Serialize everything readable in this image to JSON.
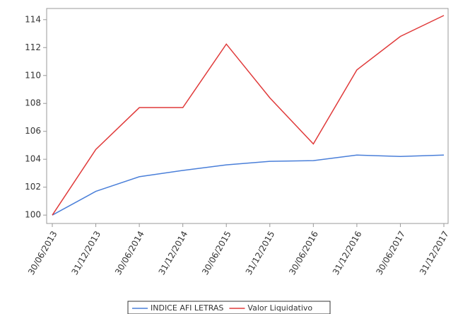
{
  "chart_data": {
    "type": "line",
    "categories": [
      "30/06/2013",
      "31/12/2013",
      "30/06/2014",
      "31/12/2014",
      "30/06/2015",
      "31/12/2015",
      "30/06/2016",
      "31/12/2016",
      "30/06/2017",
      "31/12/2017"
    ],
    "series": [
      {
        "name": "INDICE AFI LETRAS",
        "color": "#4a7fd9",
        "values": [
          100,
          101.7,
          102.75,
          103.2,
          103.6,
          103.85,
          103.9,
          104.3,
          104.2,
          104.3
        ]
      },
      {
        "name": "Valor Liquidativo",
        "color": "#e03a3a",
        "values": [
          100,
          104.7,
          107.7,
          107.7,
          112.25,
          108.4,
          105.1,
          110.4,
          112.8,
          114.3
        ]
      }
    ],
    "ylim": [
      99.4,
      114.8
    ],
    "yticks": [
      100,
      102,
      104,
      106,
      108,
      110,
      112,
      114
    ],
    "grid": false,
    "legend": "bottom"
  }
}
